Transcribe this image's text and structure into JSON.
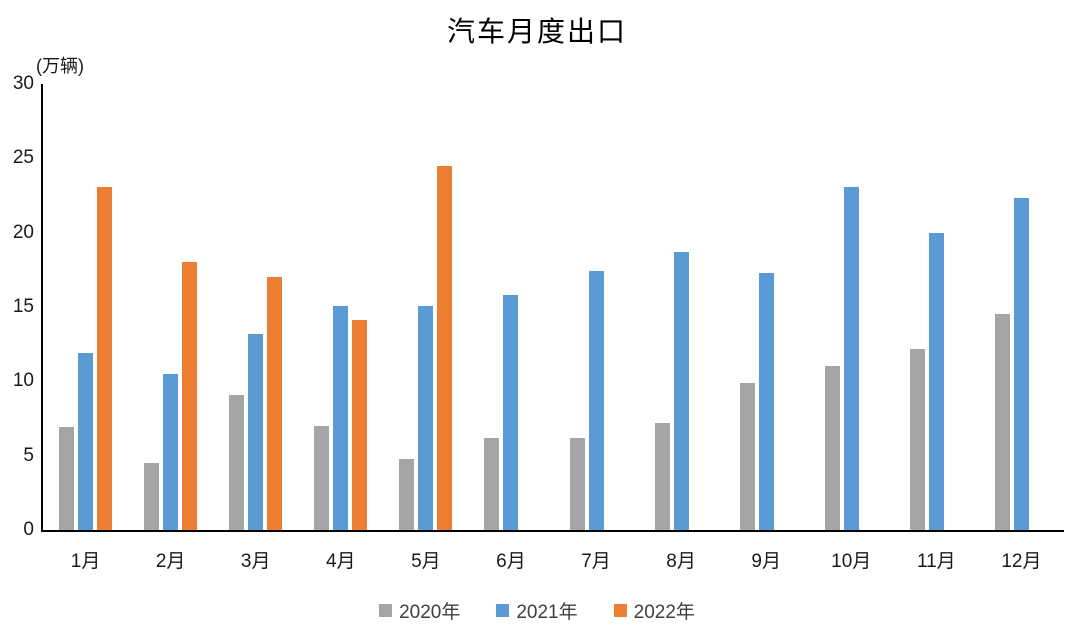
{
  "chart_data": {
    "type": "bar",
    "title": "汽车月度出口",
    "unit_label": "(万辆)",
    "categories": [
      "1月",
      "2月",
      "3月",
      "4月",
      "5月",
      "6月",
      "7月",
      "8月",
      "9月",
      "10月",
      "11月",
      "12月"
    ],
    "series": [
      {
        "name": "2020年",
        "color": "#A5A5A5",
        "values": [
          6.9,
          4.5,
          9.1,
          7.0,
          4.8,
          6.2,
          6.2,
          7.2,
          9.9,
          11.0,
          12.2,
          14.5
        ]
      },
      {
        "name": "2021年",
        "color": "#5B9BD5",
        "values": [
          11.9,
          10.5,
          13.2,
          15.1,
          15.1,
          15.8,
          17.4,
          18.7,
          17.3,
          23.1,
          20.0,
          22.3
        ]
      },
      {
        "name": "2022年",
        "color": "#ED7D31",
        "values": [
          23.1,
          18.0,
          17.0,
          14.1,
          24.5,
          null,
          null,
          null,
          null,
          null,
          null,
          null
        ]
      }
    ],
    "ylim": [
      0,
      30
    ],
    "yticks": [
      0,
      5,
      10,
      15,
      20,
      25,
      30
    ],
    "grid": false,
    "legend_position": "bottom",
    "axis_color": "#000000"
  }
}
